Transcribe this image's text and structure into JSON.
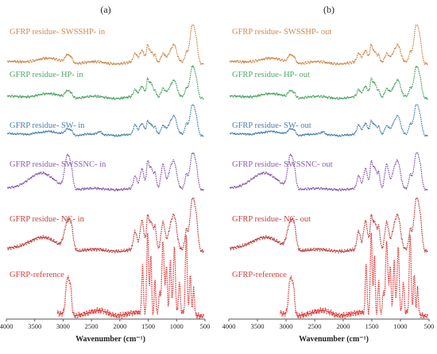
{
  "colors": {
    "SWSSHP": "#d08a4e",
    "HP": "#4ea766",
    "SW": "#4a7fb1",
    "SWSSNC": "#8b5eb0",
    "NC": "#bf4343",
    "reference": "#e23c3c",
    "axis": "#555555"
  },
  "chart_data": [
    {
      "type": "line",
      "panel_label": "(a)",
      "xlabel": "Wavenumber (cm⁻¹)",
      "xlim": [
        4000,
        500
      ],
      "x_reversed": true,
      "x_ticks": [
        "4000",
        "3500",
        "3000",
        "2500",
        "2000",
        "1500",
        "1000",
        "500"
      ],
      "series": [
        {
          "key": "SWSSHP",
          "name": "GFRP residue- SWSSHP- in",
          "color_key": "SWSSHP"
        },
        {
          "key": "HP",
          "name": "GFRP residue- HP- in",
          "color_key": "HP"
        },
        {
          "key": "SW",
          "name": "GFRP residue- SW- in",
          "color_key": "SW"
        },
        {
          "key": "SWSSNC",
          "name": "GFRP residue- SWSSNC- in",
          "color_key": "SWSSNC"
        },
        {
          "key": "NC",
          "name": "GFRP residue- NC- in",
          "color_key": "NC"
        },
        {
          "key": "reference",
          "name": "GFRP-reference",
          "color_key": "reference"
        }
      ]
    },
    {
      "type": "line",
      "panel_label": "(b)",
      "xlabel": "Wavenumber (cm⁻¹)",
      "xlim": [
        4000,
        500
      ],
      "x_reversed": true,
      "x_ticks": [
        "4000",
        "3500",
        "3000",
        "2500",
        "2000",
        "1500",
        "1000",
        "500"
      ],
      "series": [
        {
          "key": "SWSSHP",
          "name": "GFRP residue- SWSSHP- out",
          "color_key": "SWSSHP"
        },
        {
          "key": "HP",
          "name": "GFRP residue- HP- out",
          "color_key": "HP"
        },
        {
          "key": "SW",
          "name": "GFRP residue- SW- out",
          "color_key": "SW"
        },
        {
          "key": "SWSSNC",
          "name": "GFRP residue- SWSSNC- out",
          "color_key": "SWSSNC"
        },
        {
          "key": "NC",
          "name": "GFRP residue- NC- out",
          "color_key": "NC"
        },
        {
          "key": "reference",
          "name": "GFRP-reference",
          "color_key": "reference"
        }
      ]
    }
  ]
}
